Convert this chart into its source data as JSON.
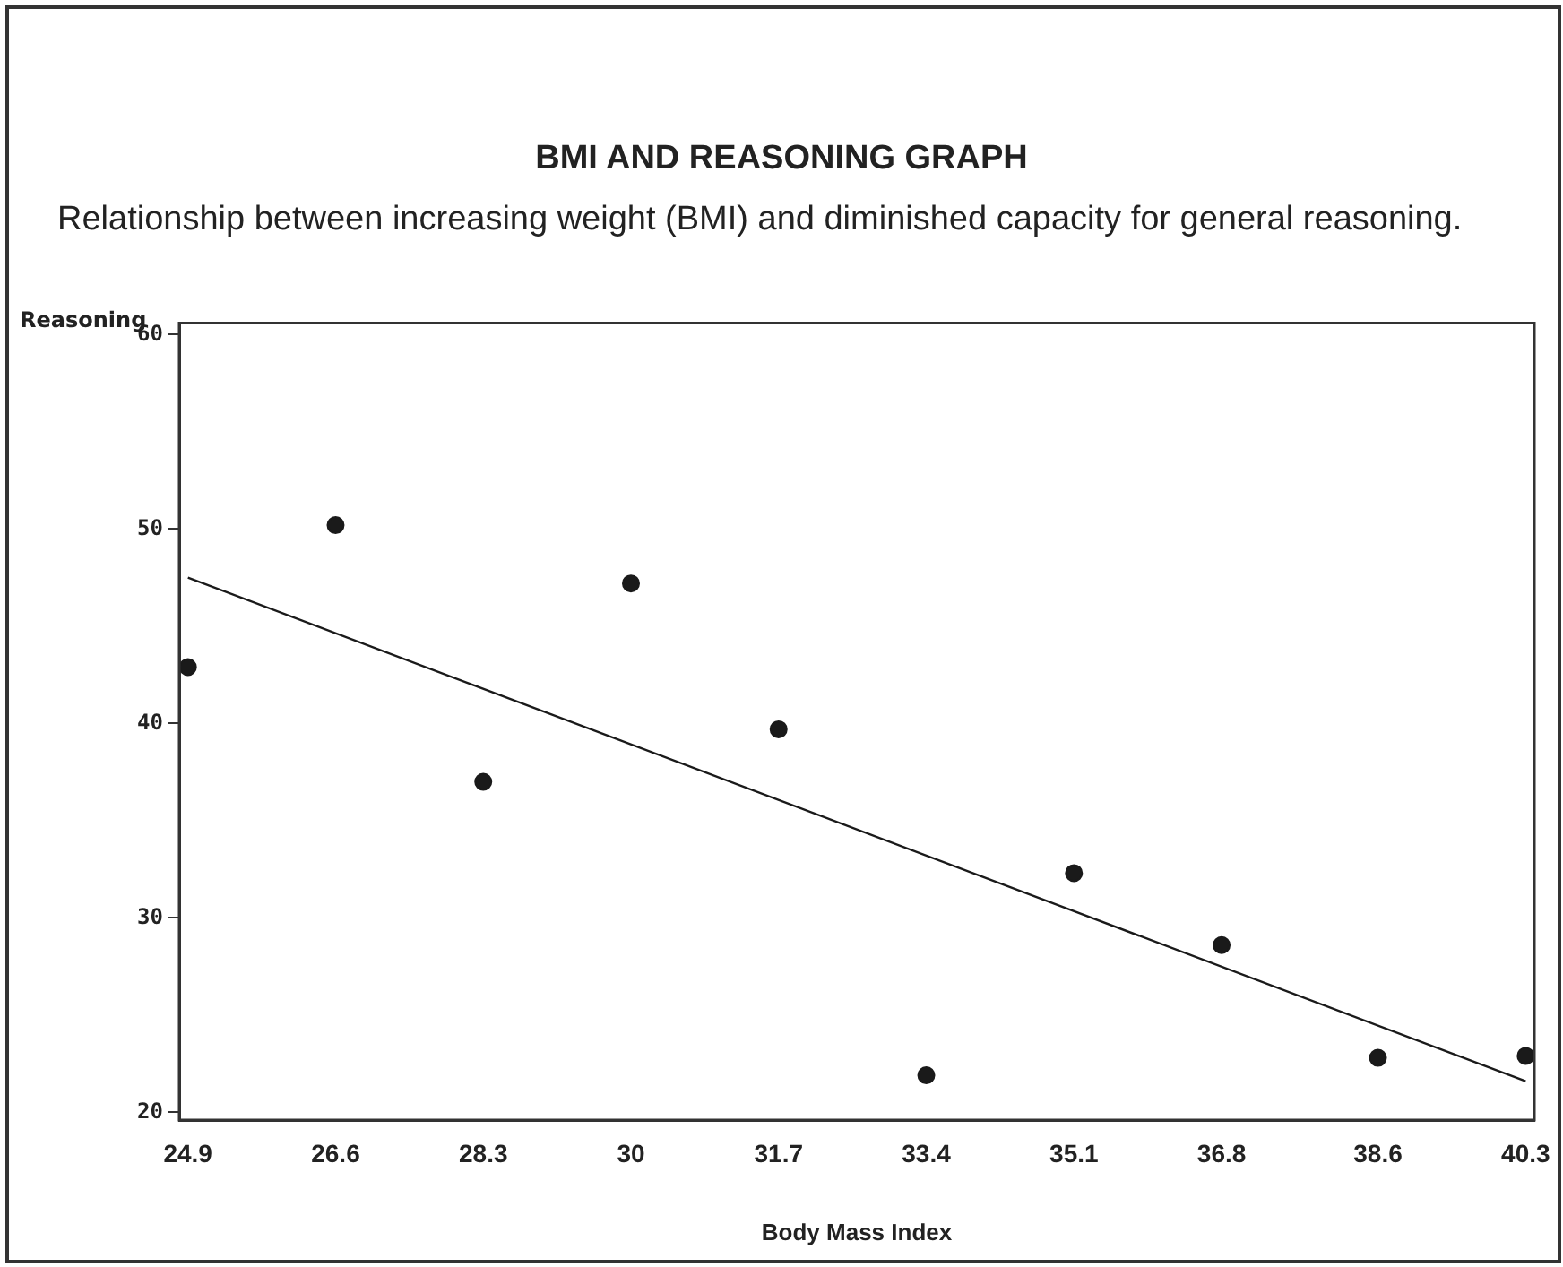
{
  "chart_data": {
    "type": "scatter",
    "title": "BMI AND REASONING GRAPH",
    "subtitle": "Relationship between increasing weight (BMI) and diminished capacity for general reasoning.",
    "xlabel": "Body Mass Index",
    "ylabel": "Reasoning",
    "series": [
      {
        "type": "scatter",
        "color": "#1a1a1a",
        "marker": "circle",
        "x": [
          24.9,
          26.6,
          28.3,
          30,
          31.7,
          33.4,
          35.1,
          36.8,
          38.6,
          40.3
        ],
        "values": [
          42.9,
          50.2,
          37.0,
          47.2,
          39.7,
          21.9,
          32.3,
          28.6,
          22.8,
          22.9
        ]
      },
      {
        "type": "line",
        "color": "#1a1a1a",
        "marker": "none",
        "x": [
          24.9,
          40.3
        ],
        "values": [
          47.5,
          21.6
        ]
      }
    ],
    "xlim": [
      24.8,
      40.4
    ],
    "xticks": [
      24.9,
      26.6,
      28.3,
      30,
      31.7,
      33.4,
      35.1,
      36.8,
      38.6,
      40.3
    ],
    "ylim": [
      19.6,
      60.6
    ],
    "yticks": [
      20,
      30,
      40,
      50,
      60
    ],
    "grid": false,
    "legend": false
  }
}
